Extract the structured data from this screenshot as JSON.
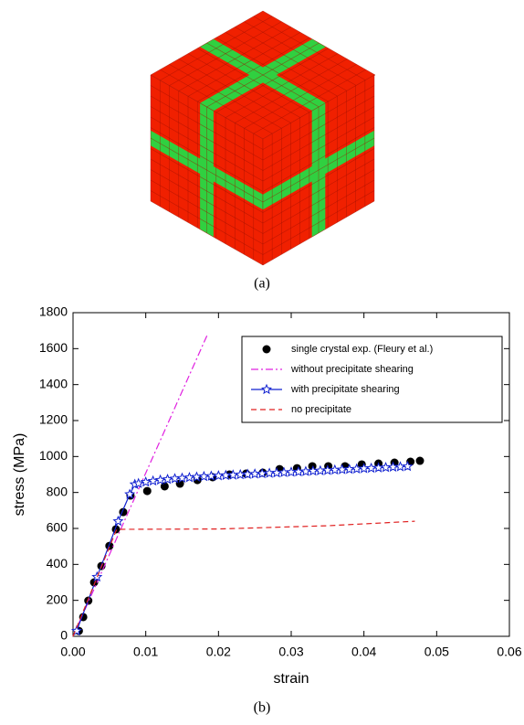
{
  "panel_labels": [
    "(a)",
    "(b)"
  ],
  "chart_data": {
    "type": "line",
    "xlabel": "strain",
    "ylabel": "stress (MPa)",
    "xlim": [
      0,
      0.06
    ],
    "ylim": [
      0,
      1800
    ],
    "xticks": [
      {
        "value": 0,
        "label": "0.00"
      },
      {
        "value": 0.01,
        "label": "0.01"
      },
      {
        "value": 0.02,
        "label": "0.02"
      },
      {
        "value": 0.03,
        "label": "0.03"
      },
      {
        "value": 0.04,
        "label": "0.04"
      },
      {
        "value": 0.05,
        "label": "0.05"
      },
      {
        "value": 0.06,
        "label": "0.06"
      }
    ],
    "yticks": [
      0,
      200,
      400,
      600,
      800,
      1000,
      1200,
      1400,
      1600,
      1800
    ],
    "grid": false,
    "legend": "upper right",
    "series": [
      {
        "name": "single crystal exp. (Fleury et al.)",
        "color": "#000000",
        "style": "markers",
        "x": [
          0.0008,
          0.0014,
          0.0021,
          0.0029,
          0.0039,
          0.005,
          0.0059,
          0.0069,
          0.0079,
          0.0102,
          0.0126,
          0.0147,
          0.0171,
          0.0192,
          0.0215,
          0.0238,
          0.0261,
          0.0284,
          0.0308,
          0.0329,
          0.0351,
          0.0374,
          0.0397,
          0.042,
          0.0442,
          0.0464,
          0.0477
        ],
        "values": [
          30,
          107,
          198,
          300,
          391,
          503,
          595,
          691,
          783,
          808,
          834,
          849,
          869,
          885,
          900,
          905,
          910,
          930,
          935,
          946,
          946,
          946,
          956,
          961,
          966,
          971,
          976
        ]
      },
      {
        "name": "without precipitate shearing",
        "color": "#e020e0",
        "style": "dashdot",
        "x": [
          0,
          0.0185
        ],
        "values": [
          0,
          1680
        ]
      },
      {
        "name": "with precipitate shearing",
        "color": "#1020d0",
        "style": "line-star",
        "x": [
          0.0005,
          0.0033,
          0.0062,
          0.0078,
          0.0085,
          0.009,
          0.01,
          0.011,
          0.012,
          0.013,
          0.014,
          0.015,
          0.016,
          0.017,
          0.018,
          0.019,
          0.02,
          0.021,
          0.022,
          0.023,
          0.024,
          0.025,
          0.026,
          0.027,
          0.028,
          0.029,
          0.03,
          0.031,
          0.032,
          0.033,
          0.034,
          0.035,
          0.036,
          0.037,
          0.038,
          0.039,
          0.04,
          0.041,
          0.042,
          0.043,
          0.044,
          0.045,
          0.046
        ],
        "values": [
          30,
          330,
          640,
          790,
          845,
          850,
          858,
          864,
          869,
          873,
          877,
          880,
          883,
          886,
          889,
          891,
          893,
          895,
          897,
          899,
          901,
          903,
          905,
          907,
          909,
          911,
          913,
          915,
          917,
          919,
          921,
          923,
          925,
          927,
          929,
          931,
          933,
          935,
          937,
          939,
          941,
          943,
          945
        ]
      },
      {
        "name": "no precipitate",
        "color": "#e02020",
        "style": "dashed",
        "x": [
          0,
          0.006,
          0.02,
          0.035,
          0.047
        ],
        "values": [
          0,
          595,
          597,
          615,
          640
        ]
      }
    ]
  }
}
